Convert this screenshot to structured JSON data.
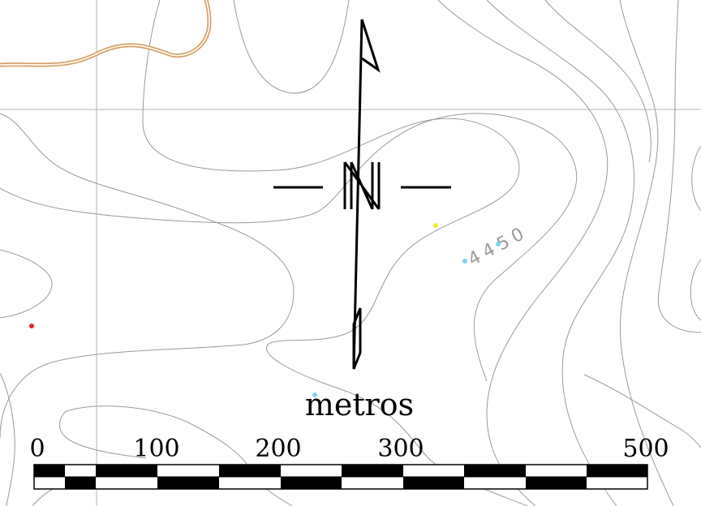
{
  "map": {
    "contour_label": "4450",
    "features": {
      "road_color": "#d7a064",
      "contour_color": "#9a9a9a",
      "grid_color": "#b5b5b5"
    },
    "points": [
      {
        "name": "red-point",
        "color": "#e8222a"
      },
      {
        "name": "yellow-point",
        "color": "#f2ea1c"
      },
      {
        "name": "cyan-point-a",
        "color": "#7fd4ee"
      },
      {
        "name": "cyan-point-b",
        "color": "#7fd4ee"
      },
      {
        "name": "cyan-point-c",
        "color": "#7fd4ee"
      }
    ]
  },
  "north_arrow": {
    "icon": "north-arrow-icon"
  },
  "scale_bar": {
    "units": "metros",
    "labels": [
      "0",
      "100",
      "200",
      "300",
      "500"
    ]
  }
}
